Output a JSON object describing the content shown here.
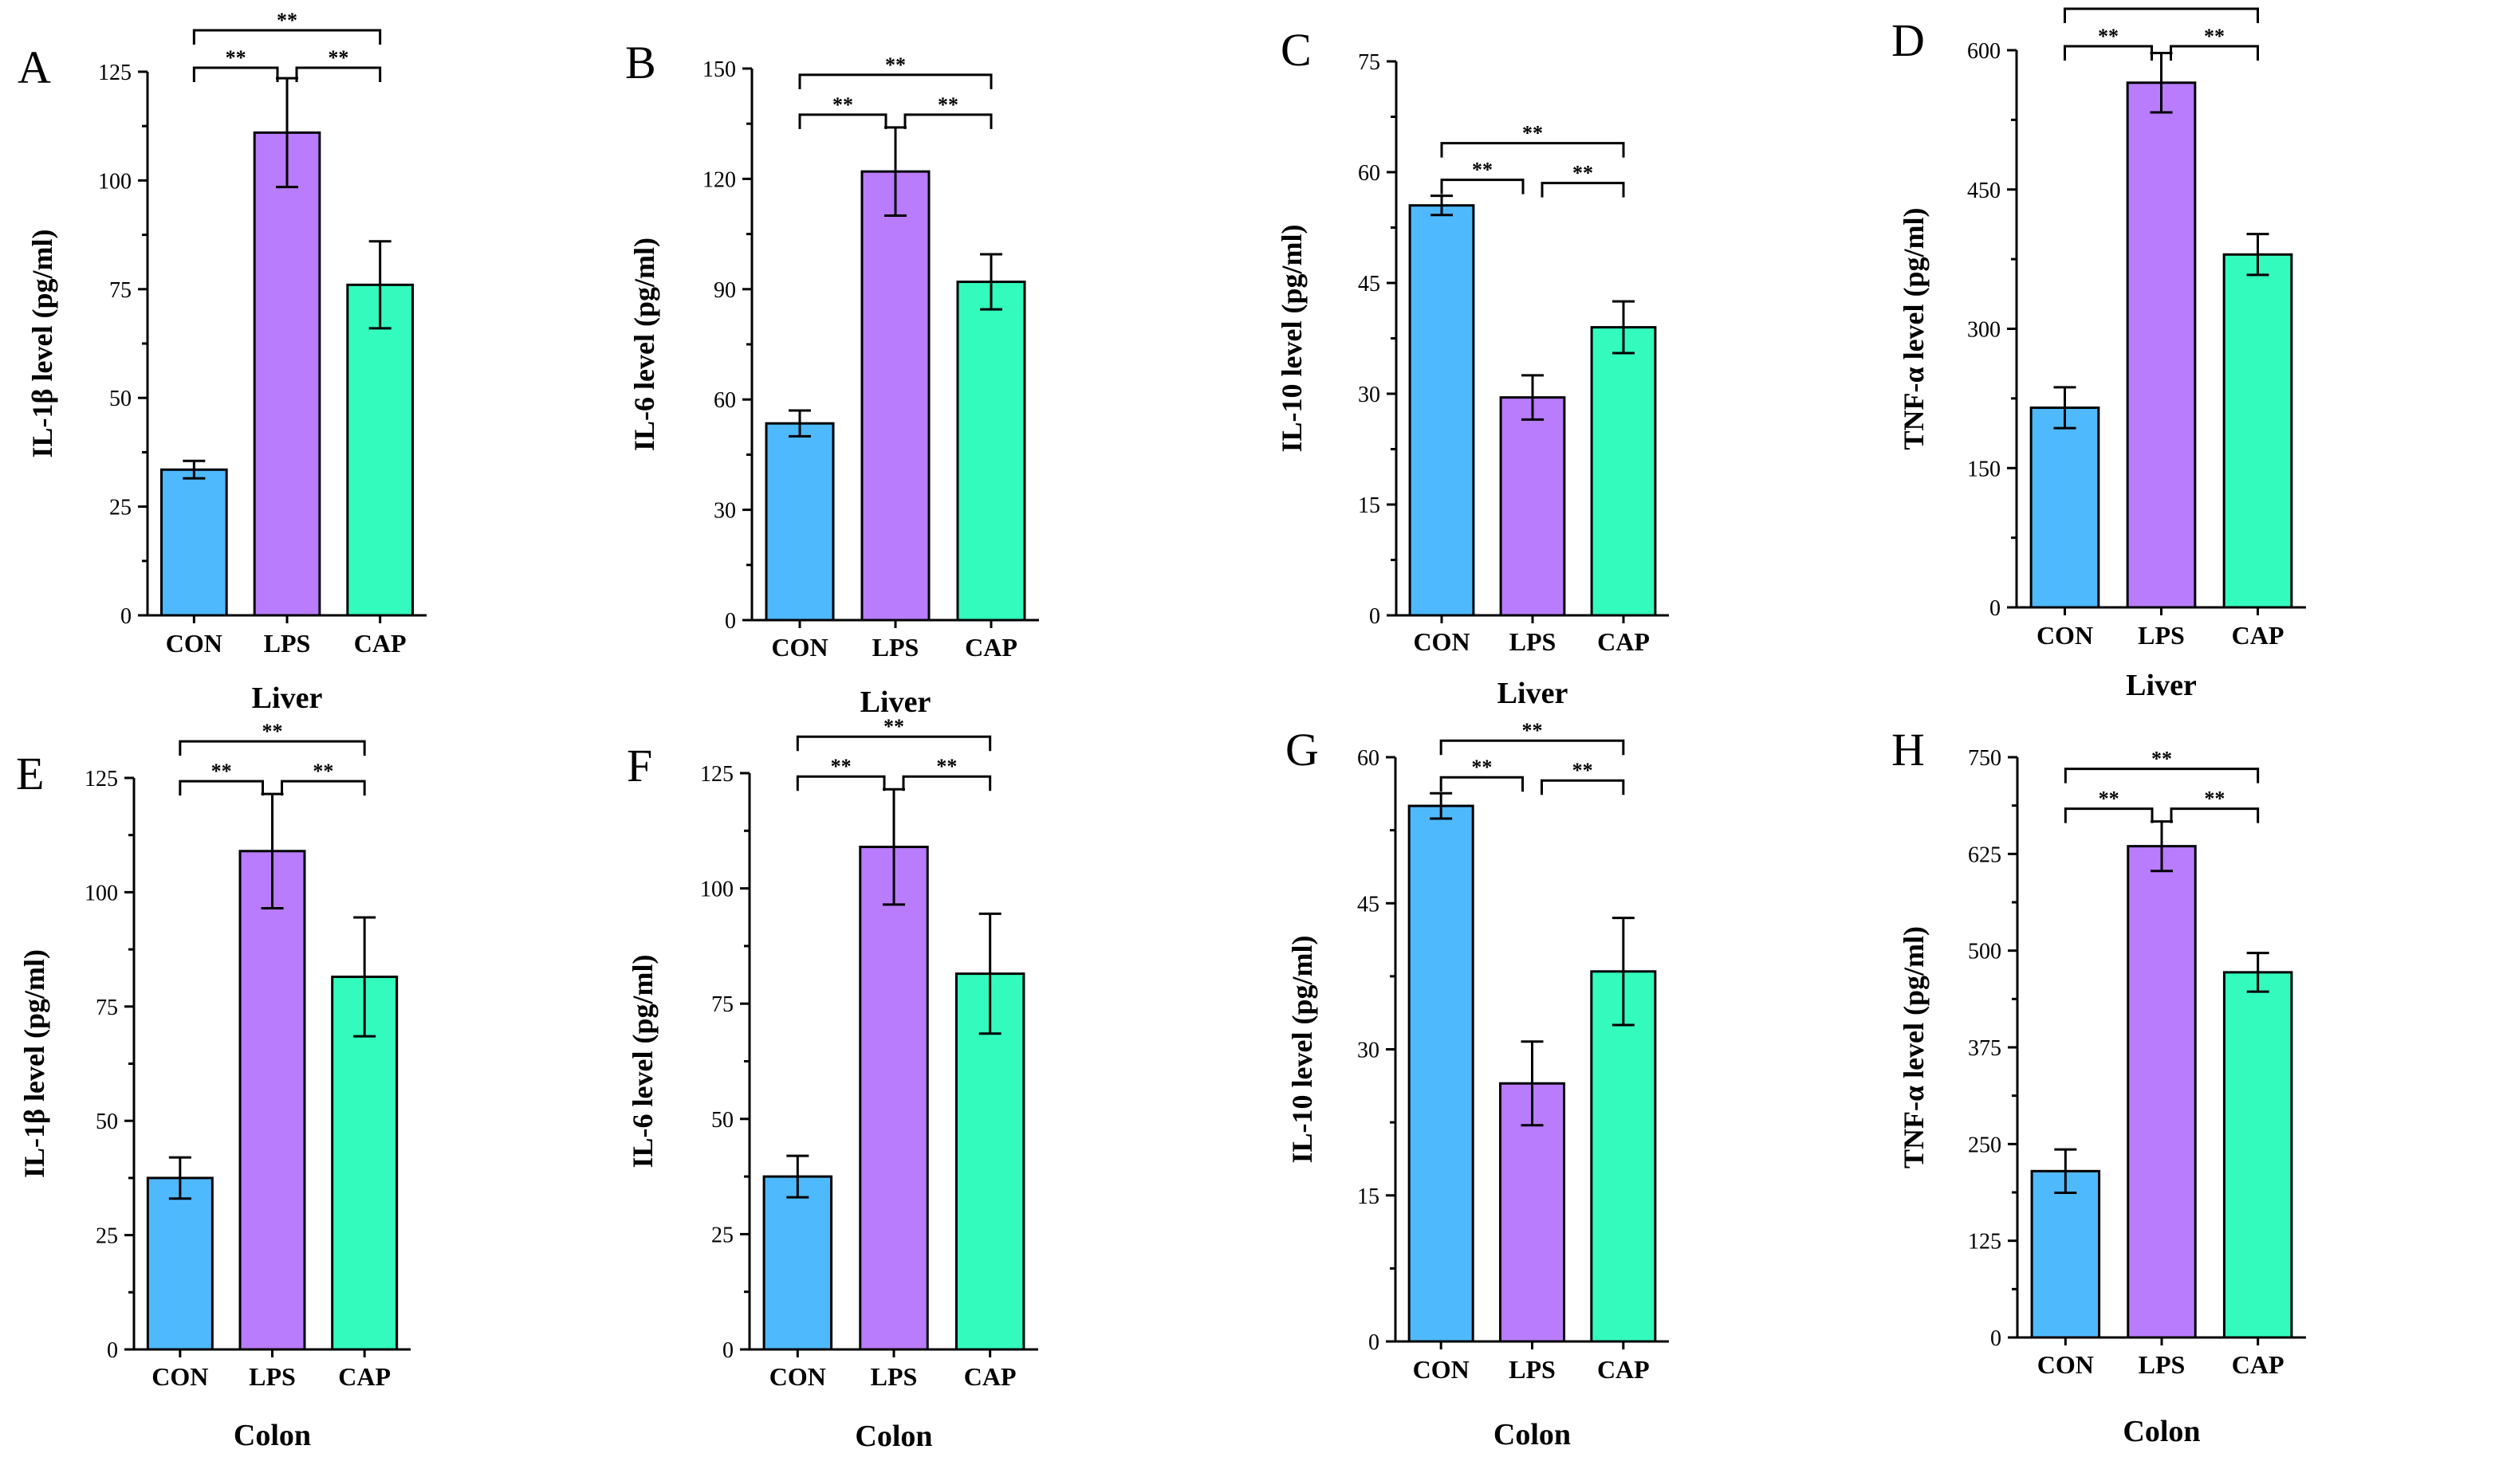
{
  "colors": {
    "CON": "#4fb9fd",
    "LPS": "#b87cfd",
    "CAP": "#33fbbe",
    "axis": "#000000"
  },
  "chart_data": [
    {
      "panel": "A",
      "type": "bar",
      "title": "",
      "xlabel": "Liver",
      "ylabel": "IL-1β level (pg/ml)",
      "categories": [
        "CON",
        "LPS",
        "CAP"
      ],
      "values": [
        33.5,
        111,
        76
      ],
      "errors": [
        2,
        12.5,
        10
      ],
      "ylim": [
        0,
        125
      ],
      "yticks": [
        0,
        25,
        50,
        75,
        100,
        125
      ],
      "significance": [
        {
          "from": 0,
          "to": 1,
          "label": "**",
          "level": 0
        },
        {
          "from": 1,
          "to": 2,
          "label": "**",
          "level": 0
        },
        {
          "from": 0,
          "to": 2,
          "label": "**",
          "level": 1
        }
      ]
    },
    {
      "panel": "B",
      "type": "bar",
      "title": "",
      "xlabel": "Liver",
      "ylabel": "IL-6 level (pg/ml)",
      "categories": [
        "CON",
        "LPS",
        "CAP"
      ],
      "values": [
        53.5,
        122,
        92
      ],
      "errors": [
        3.5,
        12,
        7.5
      ],
      "ylim": [
        0,
        150
      ],
      "yticks": [
        0,
        30,
        60,
        90,
        120,
        150
      ],
      "significance": [
        {
          "from": 0,
          "to": 1,
          "label": "**",
          "level": 0
        },
        {
          "from": 1,
          "to": 2,
          "label": "**",
          "level": 0
        },
        {
          "from": 0,
          "to": 2,
          "label": "**",
          "level": 1
        }
      ]
    },
    {
      "panel": "C",
      "type": "bar",
      "title": "",
      "xlabel": "Liver",
      "ylabel": "IL-10 level (pg/ml)",
      "categories": [
        "CON",
        "LPS",
        "CAP"
      ],
      "values": [
        55.5,
        29.5,
        39
      ],
      "errors": [
        1.3,
        3,
        3.5
      ],
      "ylim": [
        0,
        75
      ],
      "yticks": [
        0,
        15,
        30,
        45,
        60,
        75
      ],
      "significance": [
        {
          "from": 0,
          "to": 1,
          "label": "**",
          "level": 0
        },
        {
          "from": 1,
          "to": 2,
          "label": "**",
          "level": 0
        },
        {
          "from": 0,
          "to": 2,
          "label": "**",
          "level": 1
        }
      ]
    },
    {
      "panel": "D",
      "type": "bar",
      "title": "",
      "xlabel": "Liver",
      "ylabel": "TNF-α level (pg/ml)",
      "categories": [
        "CON",
        "LPS",
        "CAP"
      ],
      "values": [
        215,
        565,
        380
      ],
      "errors": [
        22,
        32,
        22
      ],
      "ylim": [
        0,
        600
      ],
      "yticks": [
        0,
        150,
        300,
        450,
        600
      ],
      "significance": [
        {
          "from": 0,
          "to": 1,
          "label": "**",
          "level": 0
        },
        {
          "from": 1,
          "to": 2,
          "label": "**",
          "level": 0
        },
        {
          "from": 0,
          "to": 2,
          "label": "**",
          "level": 1
        }
      ]
    },
    {
      "panel": "E",
      "type": "bar",
      "title": "",
      "xlabel": "Colon",
      "ylabel": "IL-1β level (pg/ml)",
      "categories": [
        "CON",
        "LPS",
        "CAP"
      ],
      "values": [
        37.5,
        109,
        81.5
      ],
      "errors": [
        4.5,
        12.5,
        13
      ],
      "ylim": [
        0,
        125
      ],
      "yticks": [
        0,
        25,
        50,
        75,
        100,
        125
      ],
      "significance": [
        {
          "from": 0,
          "to": 1,
          "label": "**",
          "level": 0
        },
        {
          "from": 1,
          "to": 2,
          "label": "**",
          "level": 0
        },
        {
          "from": 0,
          "to": 2,
          "label": "**",
          "level": 1
        }
      ]
    },
    {
      "panel": "F",
      "type": "bar",
      "title": "",
      "xlabel": "Colon",
      "ylabel": "IL-6 level (pg/ml)",
      "categories": [
        "CON",
        "LPS",
        "CAP"
      ],
      "values": [
        37.5,
        109,
        81.5
      ],
      "errors": [
        4.5,
        12.5,
        13
      ],
      "ylim": [
        0,
        125
      ],
      "yticks": [
        0,
        25,
        50,
        75,
        100,
        125
      ],
      "significance": [
        {
          "from": 0,
          "to": 1,
          "label": "**",
          "level": 0
        },
        {
          "from": 1,
          "to": 2,
          "label": "**",
          "level": 0
        },
        {
          "from": 0,
          "to": 2,
          "label": "**",
          "level": 1
        }
      ]
    },
    {
      "panel": "G",
      "type": "bar",
      "title": "",
      "xlabel": "Colon",
      "ylabel": "IL-10 level (pg/ml)",
      "categories": [
        "CON",
        "LPS",
        "CAP"
      ],
      "values": [
        55,
        26.5,
        38
      ],
      "errors": [
        1.3,
        4.3,
        5.5
      ],
      "ylim": [
        0,
        60
      ],
      "yticks": [
        0,
        15,
        30,
        45,
        60
      ],
      "significance": [
        {
          "from": 0,
          "to": 1,
          "label": "**",
          "level": 0
        },
        {
          "from": 1,
          "to": 2,
          "label": "**",
          "level": 0
        },
        {
          "from": 0,
          "to": 2,
          "label": "**",
          "level": 1
        }
      ]
    },
    {
      "panel": "H",
      "type": "bar",
      "title": "",
      "xlabel": "Colon",
      "ylabel": "TNF-α level (pg/ml)",
      "categories": [
        "CON",
        "LPS",
        "CAP"
      ],
      "values": [
        215,
        635,
        472
      ],
      "errors": [
        28,
        32,
        25
      ],
      "ylim": [
        0,
        750
      ],
      "yticks": [
        0,
        125,
        250,
        375,
        500,
        625,
        750
      ],
      "significance": [
        {
          "from": 0,
          "to": 1,
          "label": "**",
          "level": 0
        },
        {
          "from": 1,
          "to": 2,
          "label": "**",
          "level": 0
        },
        {
          "from": 0,
          "to": 2,
          "label": "**",
          "level": 1
        }
      ]
    }
  ]
}
